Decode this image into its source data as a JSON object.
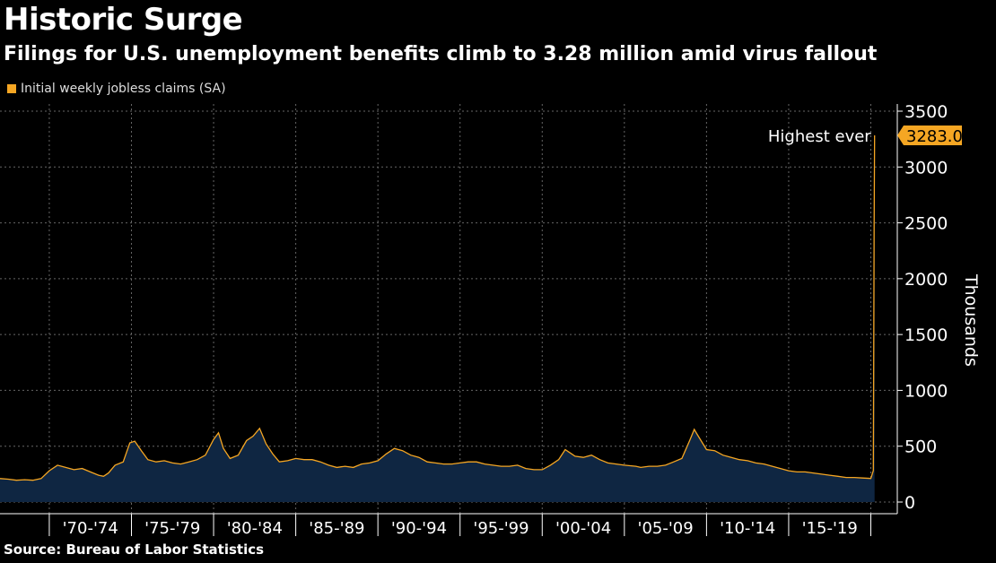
{
  "header": {
    "title": "Historic Surge",
    "subtitle": "Filings for U.S. unemployment benefits climb to 3.28 million amid virus fallout"
  },
  "legend": {
    "label": "Initial weekly jobless claims (SA)"
  },
  "footer": {
    "source": "Source: Bureau of Labor Statistics"
  },
  "annotation": {
    "label": "Highest ever",
    "value_label": "3283.0"
  },
  "colors": {
    "line": "#f5a623",
    "fill": "#0f2642",
    "grid": "#666666",
    "label_bg": "#f5a623"
  },
  "chart_data": {
    "type": "area",
    "title": "Historic Surge",
    "subtitle": "Filings for U.S. unemployment benefits climb to 3.28 million amid virus fallout",
    "ylabel": "Thousands",
    "xlabel": "",
    "ylim": [
      0,
      3500
    ],
    "xlim": [
      1967,
      2020.3
    ],
    "y_ticks": [
      0,
      500,
      1000,
      1500,
      2000,
      2500,
      3000,
      3500
    ],
    "x_tick_labels": [
      "'70-'74",
      "'75-'79",
      "'80-'84",
      "'85-'89",
      "'90-'94",
      "'95-'99",
      "'00-'04",
      "'05-'09",
      "'10-'14",
      "'15-'19"
    ],
    "grid": true,
    "series": [
      {
        "name": "Initial weekly jobless claims (SA)",
        "x": [
          1967.0,
          1967.5,
          1968.0,
          1968.5,
          1969.0,
          1969.5,
          1970.0,
          1970.5,
          1971.0,
          1971.5,
          1972.0,
          1972.5,
          1973.0,
          1973.3,
          1973.6,
          1974.0,
          1974.5,
          1974.9,
          1975.2,
          1975.6,
          1976.0,
          1976.5,
          1977.0,
          1977.5,
          1978.0,
          1978.5,
          1979.0,
          1979.5,
          1980.0,
          1980.3,
          1980.6,
          1981.0,
          1981.5,
          1982.0,
          1982.4,
          1982.8,
          1983.2,
          1983.6,
          1984.0,
          1984.5,
          1985.0,
          1985.5,
          1986.0,
          1986.5,
          1987.0,
          1987.5,
          1988.0,
          1988.5,
          1989.0,
          1989.5,
          1990.0,
          1990.5,
          1991.0,
          1991.5,
          1992.0,
          1992.5,
          1993.0,
          1993.5,
          1994.0,
          1994.5,
          1995.0,
          1995.5,
          1996.0,
          1996.5,
          1997.0,
          1997.5,
          1998.0,
          1998.5,
          1999.0,
          1999.5,
          2000.0,
          2000.5,
          2001.0,
          2001.4,
          2001.7,
          2002.0,
          2002.5,
          2003.0,
          2003.5,
          2004.0,
          2004.5,
          2005.0,
          2005.7,
          2006.0,
          2006.5,
          2007.0,
          2007.5,
          2008.0,
          2008.5,
          2009.0,
          2009.25,
          2009.5,
          2010.0,
          2010.5,
          2011.0,
          2011.5,
          2012.0,
          2012.5,
          2013.0,
          2013.5,
          2014.0,
          2014.5,
          2015.0,
          2015.5,
          2016.0,
          2016.5,
          2017.0,
          2017.5,
          2018.0,
          2018.5,
          2019.0,
          2019.5,
          2020.0,
          2020.15,
          2020.2,
          2020.23
        ],
        "values": [
          210,
          205,
          195,
          200,
          195,
          210,
          280,
          330,
          310,
          290,
          300,
          270,
          240,
          230,
          260,
          330,
          360,
          530,
          545,
          460,
          380,
          360,
          370,
          350,
          340,
          360,
          380,
          420,
          560,
          620,
          480,
          390,
          420,
          550,
          590,
          660,
          520,
          430,
          360,
          370,
          390,
          380,
          380,
          360,
          330,
          310,
          320,
          310,
          340,
          350,
          370,
          430,
          480,
          460,
          420,
          400,
          360,
          350,
          340,
          340,
          350,
          360,
          360,
          340,
          330,
          320,
          320,
          330,
          300,
          290,
          290,
          330,
          380,
          470,
          440,
          410,
          400,
          420,
          380,
          350,
          340,
          330,
          320,
          310,
          320,
          320,
          330,
          360,
          390,
          560,
          650,
          590,
          470,
          460,
          420,
          400,
          380,
          370,
          350,
          340,
          320,
          300,
          280,
          270,
          270,
          260,
          250,
          240,
          230,
          220,
          220,
          215,
          211,
          282,
          2500,
          3283
        ]
      }
    ]
  }
}
